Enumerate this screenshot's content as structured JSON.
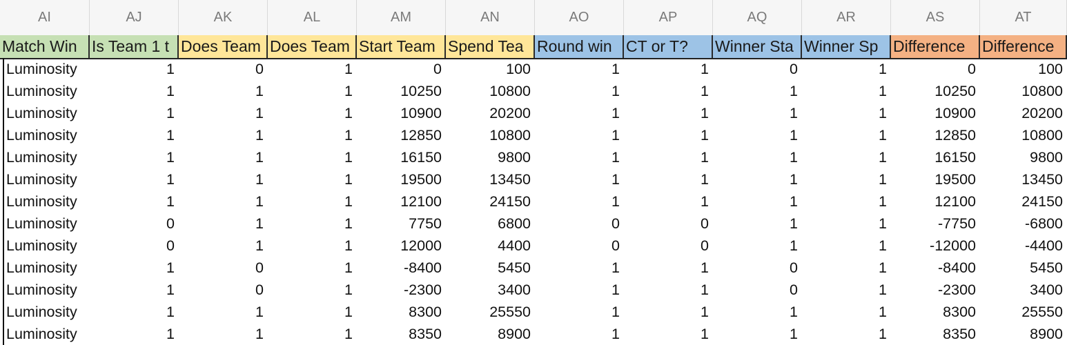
{
  "column_letters": [
    "AI",
    "AJ",
    "AK",
    "AL",
    "AM",
    "AN",
    "AO",
    "AP",
    "AQ",
    "AR",
    "AS",
    "AT"
  ],
  "field_headers": [
    {
      "label": "Match Win",
      "color": "#c6e0b4"
    },
    {
      "label": "Is Team 1 t",
      "color": "#c6e0b4"
    },
    {
      "label": "Does Team",
      "color": "#ffe699"
    },
    {
      "label": "Does Team",
      "color": "#ffe699"
    },
    {
      "label": "Start Team",
      "color": "#ffe699"
    },
    {
      "label": "Spend Tea",
      "color": "#ffe699"
    },
    {
      "label": "Round win",
      "color": "#9dc3e6"
    },
    {
      "label": "CT or T?",
      "color": "#9dc3e6"
    },
    {
      "label": "Winner Sta",
      "color": "#9dc3e6"
    },
    {
      "label": "Winner Sp",
      "color": "#9dc3e6"
    },
    {
      "label": "Difference",
      "color": "#f4b183"
    },
    {
      "label": "Difference",
      "color": "#f4b183"
    }
  ],
  "rows": [
    [
      "Luminosity",
      "1",
      "0",
      "1",
      "0",
      "100",
      "1",
      "1",
      "0",
      "1",
      "0",
      "100"
    ],
    [
      "Luminosity",
      "1",
      "1",
      "1",
      "10250",
      "10800",
      "1",
      "1",
      "1",
      "1",
      "10250",
      "10800"
    ],
    [
      "Luminosity",
      "1",
      "1",
      "1",
      "10900",
      "20200",
      "1",
      "1",
      "1",
      "1",
      "10900",
      "20200"
    ],
    [
      "Luminosity",
      "1",
      "1",
      "1",
      "12850",
      "10800",
      "1",
      "1",
      "1",
      "1",
      "12850",
      "10800"
    ],
    [
      "Luminosity",
      "1",
      "1",
      "1",
      "16150",
      "9800",
      "1",
      "1",
      "1",
      "1",
      "16150",
      "9800"
    ],
    [
      "Luminosity",
      "1",
      "1",
      "1",
      "19500",
      "13450",
      "1",
      "1",
      "1",
      "1",
      "19500",
      "13450"
    ],
    [
      "Luminosity",
      "1",
      "1",
      "1",
      "12100",
      "24150",
      "1",
      "1",
      "1",
      "1",
      "12100",
      "24150"
    ],
    [
      "Luminosity",
      "0",
      "1",
      "1",
      "7750",
      "6800",
      "0",
      "0",
      "1",
      "1",
      "-7750",
      "-6800"
    ],
    [
      "Luminosity",
      "0",
      "1",
      "1",
      "12000",
      "4400",
      "0",
      "0",
      "1",
      "1",
      "-12000",
      "-4400"
    ],
    [
      "Luminosity",
      "1",
      "0",
      "1",
      "-8400",
      "5450",
      "1",
      "1",
      "0",
      "1",
      "-8400",
      "5450"
    ],
    [
      "Luminosity",
      "1",
      "0",
      "1",
      "-2300",
      "3400",
      "1",
      "1",
      "0",
      "1",
      "-2300",
      "3400"
    ],
    [
      "Luminosity",
      "1",
      "1",
      "1",
      "8300",
      "25550",
      "1",
      "1",
      "1",
      "1",
      "8300",
      "25550"
    ],
    [
      "Luminosity",
      "1",
      "1",
      "1",
      "8350",
      "8900",
      "1",
      "1",
      "1",
      "1",
      "8350",
      "8900"
    ]
  ]
}
